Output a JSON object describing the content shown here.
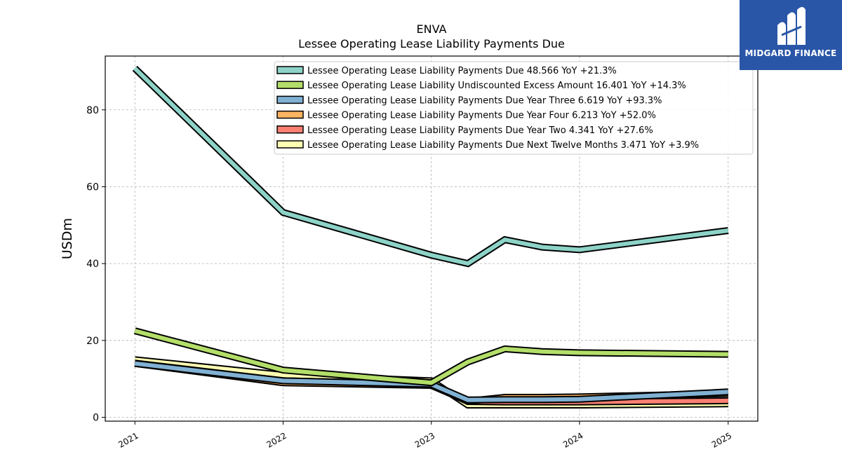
{
  "brand": {
    "name": "MIDGARD FINANCE",
    "color": "#2a56a8"
  },
  "chart_data": {
    "type": "line",
    "title": "ENVA",
    "subtitle": "Lessee Operating Lease Liability Payments Due",
    "xlabel": "",
    "ylabel": "USDm",
    "x": [
      "2021-01-01",
      "2022-01-01",
      "2023-01-01",
      "2023-04-01",
      "2023-07-01",
      "2023-10-01",
      "2024-01-01",
      "2025-01-01"
    ],
    "x_ticks": [
      "2021",
      "2022",
      "2023",
      "2024",
      "2025"
    ],
    "ylim": [
      -1,
      94
    ],
    "yticks": [
      0,
      20,
      40,
      60,
      80
    ],
    "grid": true,
    "legend_position": "top-right",
    "series": [
      {
        "name": "Lessee Operating Lease Liability Payments Due",
        "latest": "48.566",
        "yoy": "+21.3%",
        "color": "#8dd3c7",
        "values": [
          90.8,
          53.3,
          42.2,
          40.0,
          46.2,
          44.3,
          43.6,
          48.6
        ]
      },
      {
        "name": "Lessee Operating Lease Liability Undiscounted Excess Amount",
        "latest": "16.401",
        "yoy": "+14.3%",
        "color": "#b3de69",
        "values": [
          22.5,
          12.3,
          9.0,
          14.4,
          17.8,
          17.1,
          16.8,
          16.4
        ]
      },
      {
        "name": "Lessee Operating Lease Liability Payments Due Year Three",
        "latest": "6.619",
        "yoy": "+93.3%",
        "color": "#80b1d3",
        "values": [
          14.0,
          9.5,
          8.6,
          4.5,
          4.6,
          4.6,
          4.7,
          6.6
        ]
      },
      {
        "name": "Lessee Operating Lease Liability Payments Due Year Four",
        "latest": "6.213",
        "yoy": "+52.0%",
        "color": "#fdb462",
        "values": [
          14.0,
          9.0,
          8.3,
          4.2,
          5.2,
          5.2,
          5.3,
          6.2
        ]
      },
      {
        "name": "Lessee Operating Lease Liability Payments Due Year Two",
        "latest": "4.341",
        "yoy": "+27.6%",
        "color": "#fb8072",
        "values": [
          14.1,
          9.5,
          8.6,
          4.1,
          4.0,
          4.0,
          4.0,
          4.3
        ]
      },
      {
        "name": "Lessee Operating Lease Liability Payments Due Next Twelve Months",
        "latest": "3.471",
        "yoy": "+3.9%",
        "color": "#ffffb3",
        "values": [
          15.0,
          11.0,
          9.5,
          3.2,
          3.2,
          3.2,
          3.2,
          3.5
        ]
      }
    ]
  }
}
